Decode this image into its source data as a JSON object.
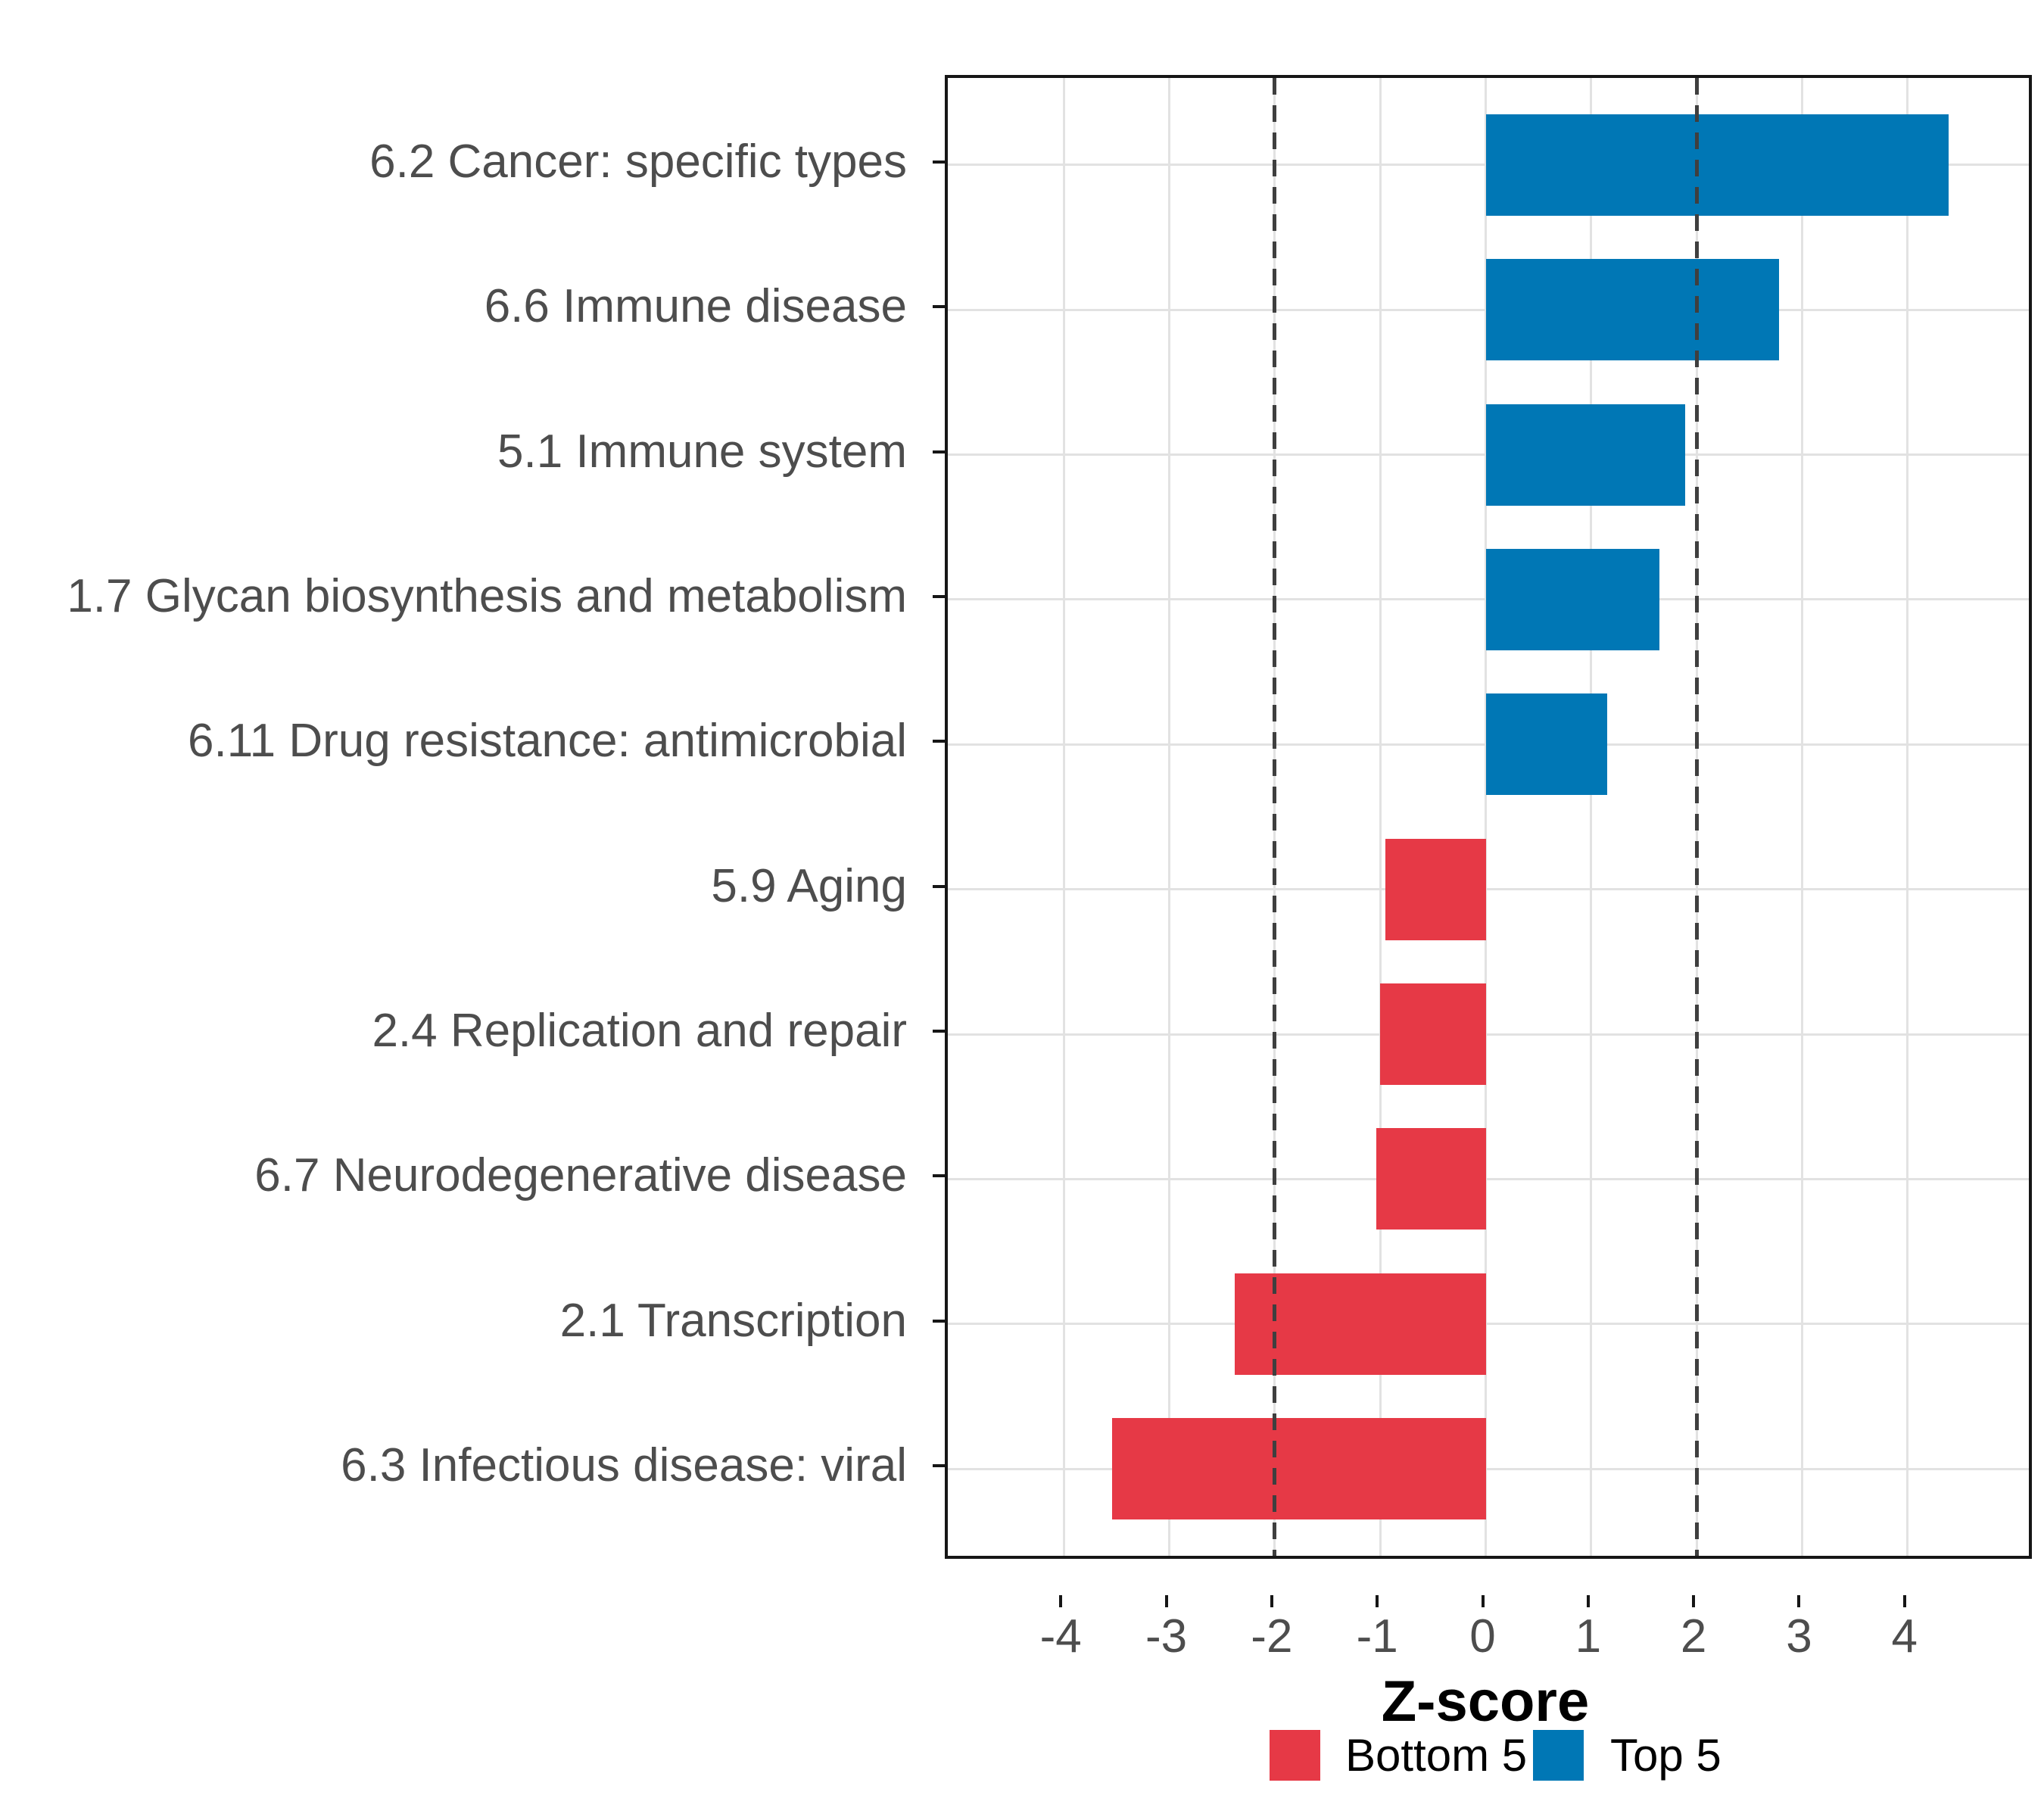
{
  "figure": {
    "xlabel": "Z-score"
  },
  "legend": {
    "items": [
      {
        "label": "Bottom 5",
        "color": "#E63946"
      },
      {
        "label": "Top 5",
        "color": "#0077B5"
      }
    ]
  },
  "chart_data": {
    "type": "bar",
    "orientation": "horizontal",
    "title": "",
    "xlabel": "Z-score",
    "ylabel": "",
    "categories": [
      "6.2 Cancer: specific types",
      "6.6 Immune disease",
      "5.1 Immune system",
      "1.7 Glycan biosynthesis and metabolism",
      "6.11 Drug resistance: antimicrobial",
      "5.9 Aging",
      "2.4 Replication and repair",
      "6.7 Neurodegenerative disease",
      "2.1 Transcription",
      "6.3 Infectious disease: viral"
    ],
    "values": [
      4.39,
      2.78,
      1.89,
      1.65,
      1.15,
      -0.95,
      -1.0,
      -1.04,
      -2.38,
      -3.54
    ],
    "groups": [
      "Top 5",
      "Top 5",
      "Top 5",
      "Top 5",
      "Top 5",
      "Bottom 5",
      "Bottom 5",
      "Bottom 5",
      "Bottom 5",
      "Bottom 5"
    ],
    "series": [
      {
        "name": "Bottom 5",
        "color": "#E63946"
      },
      {
        "name": "Top 5",
        "color": "#0077B5"
      }
    ],
    "x_ticks": [
      -4,
      -3,
      -2,
      -1,
      0,
      1,
      2,
      3,
      4
    ],
    "x_tick_labels": [
      "-4",
      "-3",
      "-2",
      "-1",
      "0",
      "1",
      "2",
      "3",
      "4"
    ],
    "xlim": [
      -5.1,
      5.15
    ],
    "reference_lines": [
      -2,
      2
    ],
    "grid": true,
    "legend_position": "bottom",
    "bar_width_fraction": 0.7,
    "colors": {
      "grid": "#E2E2E2",
      "reference_line": "#3F3F3F",
      "axis_text": "#4D4D4D",
      "panel_border": "#161616"
    }
  }
}
